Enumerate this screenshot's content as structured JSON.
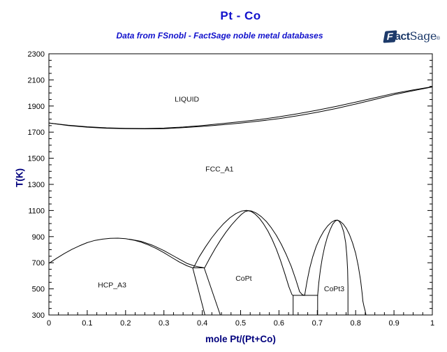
{
  "header": {
    "title": "Pt - Co",
    "subtitle": "Data from FSnobl - FactSage noble metal databases"
  },
  "logo": {
    "f": "F",
    "act": "act",
    "sage": "Sage",
    "mark": "®"
  },
  "chart_data": {
    "type": "line",
    "title": "Pt - Co",
    "subtitle": "Data from FSnobl - FactSage noble metal databases",
    "xlabel": "mole Pt/(Pt+Co)",
    "ylabel": "T(K)",
    "xlim": [
      0,
      1
    ],
    "ylim": [
      300,
      2300
    ],
    "grid": false,
    "legend": "none",
    "line_color": "#000000",
    "x_major_ticks": [
      0,
      0.1,
      0.2,
      0.3,
      0.4,
      0.5,
      0.6,
      0.7,
      0.8,
      0.9,
      1
    ],
    "x_tick_labels": [
      "0",
      "0.1",
      "0.2",
      "0.3",
      "0.4",
      "0.5",
      "0.6",
      "0.7",
      "0.8",
      "0.9",
      "1"
    ],
    "x_minor_step": 0.025,
    "y_major_ticks": [
      300,
      500,
      700,
      900,
      1100,
      1300,
      1500,
      1700,
      1900,
      2100,
      2300
    ],
    "y_tick_labels": [
      "300",
      "500",
      "700",
      "900",
      "1100",
      "1300",
      "1500",
      "1700",
      "1900",
      "2100",
      "2300"
    ],
    "y_minor_step": 50,
    "region_labels": [
      {
        "text": "LIQUID",
        "x": 0.36,
        "t": 1935
      },
      {
        "text": "FCC_A1",
        "x": 0.445,
        "t": 1400
      },
      {
        "text": "HCP_A3",
        "x": 0.165,
        "t": 510
      },
      {
        "text": "CoPt",
        "x": 0.508,
        "t": 562
      },
      {
        "text": "CoPt3",
        "x": 0.744,
        "t": 482
      }
    ],
    "series": [
      {
        "name": "liquidus",
        "points": [
          [
            0,
            1770
          ],
          [
            0.05,
            1753
          ],
          [
            0.1,
            1741
          ],
          [
            0.15,
            1733
          ],
          [
            0.2,
            1729
          ],
          [
            0.25,
            1728
          ],
          [
            0.3,
            1731
          ],
          [
            0.35,
            1739
          ],
          [
            0.4,
            1751
          ],
          [
            0.45,
            1765
          ],
          [
            0.5,
            1780
          ],
          [
            0.55,
            1797
          ],
          [
            0.6,
            1817
          ],
          [
            0.65,
            1841
          ],
          [
            0.7,
            1868
          ],
          [
            0.75,
            1898
          ],
          [
            0.8,
            1930
          ],
          [
            0.85,
            1963
          ],
          [
            0.9,
            1997
          ],
          [
            0.95,
            2023
          ],
          [
            1,
            2048
          ]
        ]
      },
      {
        "name": "solidus",
        "points": [
          [
            0,
            1770
          ],
          [
            0.05,
            1751
          ],
          [
            0.1,
            1738
          ],
          [
            0.15,
            1730
          ],
          [
            0.2,
            1726
          ],
          [
            0.25,
            1725
          ],
          [
            0.3,
            1727
          ],
          [
            0.35,
            1734
          ],
          [
            0.4,
            1744
          ],
          [
            0.45,
            1756
          ],
          [
            0.5,
            1769
          ],
          [
            0.55,
            1785
          ],
          [
            0.6,
            1803
          ],
          [
            0.65,
            1826
          ],
          [
            0.7,
            1852
          ],
          [
            0.75,
            1882
          ],
          [
            0.8,
            1915
          ],
          [
            0.85,
            1950
          ],
          [
            0.9,
            1987
          ],
          [
            0.95,
            2017
          ],
          [
            1,
            2046
          ]
        ]
      },
      {
        "name": "hcp-fcc-lower",
        "points": [
          [
            0,
            695
          ],
          [
            0.02,
            734
          ],
          [
            0.04,
            770
          ],
          [
            0.06,
            802
          ],
          [
            0.08,
            830
          ],
          [
            0.1,
            854
          ],
          [
            0.12,
            871
          ],
          [
            0.14,
            881
          ],
          [
            0.16,
            887
          ],
          [
            0.18,
            888
          ],
          [
            0.2,
            884
          ],
          [
            0.22,
            874
          ],
          [
            0.24,
            858
          ],
          [
            0.26,
            836
          ],
          [
            0.28,
            809
          ],
          [
            0.3,
            777
          ],
          [
            0.32,
            741
          ],
          [
            0.34,
            706
          ],
          [
            0.36,
            677
          ],
          [
            0.375,
            661
          ]
        ]
      },
      {
        "name": "hcp-fcc-upper",
        "points": [
          [
            0.21,
            880
          ],
          [
            0.24,
            864
          ],
          [
            0.27,
            834
          ],
          [
            0.3,
            793
          ],
          [
            0.33,
            744
          ],
          [
            0.36,
            695
          ],
          [
            0.38,
            675
          ],
          [
            0.405,
            661
          ]
        ]
      },
      {
        "name": "eutectoid-661",
        "points": [
          [
            0.375,
            661
          ],
          [
            0.405,
            661
          ]
        ]
      },
      {
        "name": "hcp-copt-left",
        "points": [
          [
            0.375,
            661
          ],
          [
            0.407,
            300
          ]
        ]
      },
      {
        "name": "hcp-copt-right",
        "points": [
          [
            0.405,
            661
          ],
          [
            0.447,
            300
          ]
        ]
      },
      {
        "name": "copt-outer",
        "points": [
          [
            0.377,
            661
          ],
          [
            0.392,
            745
          ],
          [
            0.408,
            820
          ],
          [
            0.424,
            888
          ],
          [
            0.44,
            948
          ],
          [
            0.456,
            1000
          ],
          [
            0.472,
            1044
          ],
          [
            0.488,
            1077
          ],
          [
            0.502,
            1095
          ],
          [
            0.515,
            1101
          ],
          [
            0.528,
            1096
          ],
          [
            0.541,
            1080
          ],
          [
            0.554,
            1053
          ],
          [
            0.567,
            1016
          ],
          [
            0.58,
            968
          ],
          [
            0.593,
            910
          ],
          [
            0.606,
            842
          ],
          [
            0.619,
            763
          ],
          [
            0.632,
            672
          ],
          [
            0.644,
            570
          ],
          [
            0.654,
            478
          ],
          [
            0.661,
            455
          ],
          [
            0.667,
            450
          ]
        ]
      },
      {
        "name": "copt-inner",
        "points": [
          [
            0.406,
            661
          ],
          [
            0.42,
            738
          ],
          [
            0.434,
            810
          ],
          [
            0.448,
            876
          ],
          [
            0.462,
            935
          ],
          [
            0.476,
            988
          ],
          [
            0.49,
            1034
          ],
          [
            0.502,
            1070
          ],
          [
            0.512,
            1092
          ],
          [
            0.52,
            1098
          ],
          [
            0.528,
            1092
          ],
          [
            0.538,
            1072
          ],
          [
            0.549,
            1040
          ],
          [
            0.56,
            997
          ],
          [
            0.571,
            944
          ],
          [
            0.582,
            880
          ],
          [
            0.593,
            805
          ],
          [
            0.604,
            718
          ],
          [
            0.615,
            620
          ],
          [
            0.626,
            515
          ],
          [
            0.634,
            455
          ],
          [
            0.637,
            450
          ]
        ]
      },
      {
        "name": "eutectoid-450",
        "points": [
          [
            0.637,
            450
          ],
          [
            0.701,
            450
          ]
        ]
      },
      {
        "name": "copt-copt3-left",
        "points": [
          [
            0.637,
            450
          ],
          [
            0.637,
            300
          ]
        ]
      },
      {
        "name": "copt-copt3-right",
        "points": [
          [
            0.701,
            450
          ],
          [
            0.701,
            300
          ]
        ]
      },
      {
        "name": "copt3-outer",
        "points": [
          [
            0.667,
            450
          ],
          [
            0.673,
            555
          ],
          [
            0.68,
            655
          ],
          [
            0.688,
            745
          ],
          [
            0.697,
            825
          ],
          [
            0.707,
            890
          ],
          [
            0.717,
            942
          ],
          [
            0.727,
            982
          ],
          [
            0.737,
            1010
          ],
          [
            0.746,
            1025
          ],
          [
            0.753,
            1026
          ],
          [
            0.76,
            1016
          ],
          [
            0.768,
            995
          ],
          [
            0.776,
            962
          ],
          [
            0.784,
            915
          ],
          [
            0.792,
            852
          ],
          [
            0.8,
            772
          ],
          [
            0.807,
            675
          ],
          [
            0.813,
            565
          ],
          [
            0.817,
            465
          ],
          [
            0.819,
            405
          ],
          [
            0.822,
            362
          ],
          [
            0.825,
            330
          ],
          [
            0.827,
            300
          ]
        ]
      },
      {
        "name": "copt3-inner",
        "points": [
          [
            0.701,
            450
          ],
          [
            0.704,
            550
          ],
          [
            0.708,
            645
          ],
          [
            0.713,
            735
          ],
          [
            0.719,
            820
          ],
          [
            0.726,
            895
          ],
          [
            0.733,
            950
          ],
          [
            0.74,
            995
          ],
          [
            0.747,
            1020
          ],
          [
            0.752,
            1026
          ],
          [
            0.757,
            1018
          ],
          [
            0.763,
            988
          ],
          [
            0.769,
            935
          ],
          [
            0.774,
            855
          ],
          [
            0.777,
            755
          ],
          [
            0.779,
            645
          ],
          [
            0.78,
            520
          ],
          [
            0.78,
            300
          ]
        ]
      }
    ]
  }
}
